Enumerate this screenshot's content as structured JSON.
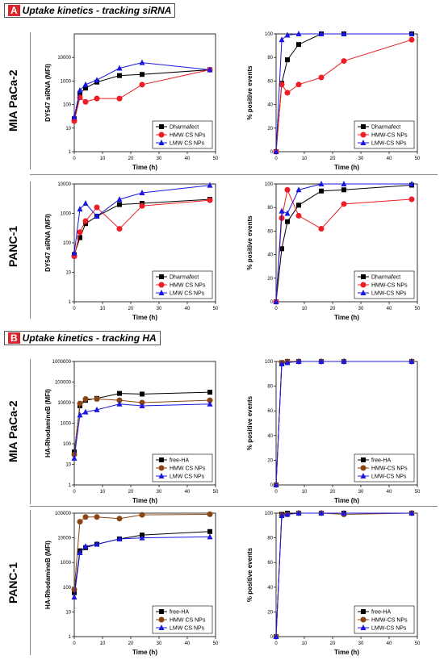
{
  "sections": [
    {
      "letter": "A",
      "title": "Uptake kinetics - tracking siRNA"
    },
    {
      "letter": "B",
      "title": "Uptake kinetics - tracking HA"
    }
  ],
  "row_labels": [
    "MIA PaCa-2",
    "PANC-1",
    "MIA PaCa-2",
    "PANC-1"
  ],
  "colors": {
    "black": "#000000",
    "red": "#ee1c24",
    "blue": "#1818e0",
    "brown": "#8b4513",
    "error_shade": "#f3c0f0"
  },
  "chart_data": [
    {
      "type": "line",
      "section": "A",
      "cell_line": "MIA PaCa-2",
      "scale": "log",
      "xlabel": "Time (h)",
      "ylabel": "DY547 siRNA (MFI)",
      "xlim": [
        0,
        50
      ],
      "ylim": [
        1,
        100000
      ],
      "x_ticks": [
        "0",
        "10",
        "20",
        "30",
        "40",
        "50"
      ],
      "y_ticks": [
        "1",
        "10",
        "100",
        "1000",
        "10000"
      ],
      "legend_position": "bottom-right",
      "series": [
        {
          "name": "Dharmafect",
          "color": "#000000",
          "marker": "square",
          "x": [
            0,
            2,
            4,
            8,
            16,
            24,
            48
          ],
          "values": [
            25,
            300,
            500,
            900,
            1700,
            1900,
            3000
          ]
        },
        {
          "name": "HMW CS NPs",
          "color": "#ee1c24",
          "marker": "circle",
          "x": [
            0,
            2,
            4,
            8,
            16,
            24,
            48
          ],
          "values": [
            20,
            200,
            130,
            180,
            180,
            700,
            3000
          ]
        },
        {
          "name": "LMW CS NPs",
          "color": "#1818e0",
          "marker": "triangle",
          "x": [
            0,
            2,
            4,
            8,
            16,
            24,
            48
          ],
          "values": [
            30,
            400,
            700,
            1100,
            3500,
            6000,
            3000
          ]
        }
      ]
    },
    {
      "type": "line",
      "section": "A",
      "cell_line": "MIA PaCa-2",
      "scale": "linear",
      "xlabel": "Time (h)",
      "ylabel": "% positive events",
      "xlim": [
        0,
        50
      ],
      "ylim": [
        0,
        100
      ],
      "x_ticks": [
        "0",
        "10",
        "20",
        "30",
        "40",
        "50"
      ],
      "y_ticks": [
        "0",
        "20",
        "40",
        "60",
        "80",
        "100"
      ],
      "legend_position": "bottom-right",
      "series": [
        {
          "name": "Dharmafect",
          "color": "#000000",
          "marker": "square",
          "x": [
            0,
            2,
            4,
            8,
            16,
            24,
            48
          ],
          "values": [
            0,
            58,
            78,
            91,
            100,
            100,
            100
          ]
        },
        {
          "name": "HMW-CS NPs",
          "color": "#ee1c24",
          "marker": "circle",
          "x": [
            0,
            2,
            4,
            8,
            16,
            24,
            48
          ],
          "values": [
            0,
            57,
            50,
            57,
            63,
            77,
            95
          ]
        },
        {
          "name": "LMW-CS NPs",
          "color": "#1818e0",
          "marker": "triangle",
          "x": [
            0,
            2,
            4,
            8,
            16,
            24,
            48
          ],
          "values": [
            0,
            95,
            99,
            100,
            100,
            100,
            100
          ]
        }
      ]
    },
    {
      "type": "line",
      "section": "A",
      "cell_line": "PANC-1",
      "scale": "log",
      "xlabel": "Time (h)",
      "ylabel": "DY547 siRNA (MFI)",
      "xlim": [
        0,
        50
      ],
      "ylim": [
        1,
        10000
      ],
      "x_ticks": [
        "0",
        "10",
        "20",
        "30",
        "40",
        "50"
      ],
      "y_ticks": [
        "1",
        "10",
        "100",
        "1000",
        "10000"
      ],
      "legend_position": "bottom-right",
      "series": [
        {
          "name": "Dharmafect",
          "color": "#000000",
          "marker": "square",
          "x": [
            0,
            2,
            4,
            8,
            16,
            24,
            48
          ],
          "values": [
            40,
            150,
            450,
            800,
            2000,
            2200,
            3000
          ]
        },
        {
          "name": "HMW CS NPs",
          "color": "#ee1c24",
          "marker": "circle",
          "x": [
            0,
            2,
            4,
            8,
            16,
            24,
            48
          ],
          "values": [
            35,
            230,
            550,
            1600,
            300,
            1800,
            2800
          ]
        },
        {
          "name": "LMW CS NPs",
          "color": "#1818e0",
          "marker": "triangle",
          "x": [
            0,
            2,
            4,
            8,
            16,
            24,
            48
          ],
          "values": [
            45,
            1400,
            2200,
            800,
            3000,
            5000,
            9000
          ]
        }
      ]
    },
    {
      "type": "line",
      "section": "A",
      "cell_line": "PANC-1",
      "scale": "linear",
      "xlabel": "Time (h)",
      "ylabel": "% positive events",
      "xlim": [
        0,
        50
      ],
      "ylim": [
        0,
        100
      ],
      "x_ticks": [
        "0",
        "10",
        "20",
        "30",
        "40",
        "50"
      ],
      "y_ticks": [
        "0",
        "20",
        "40",
        "60",
        "80",
        "100"
      ],
      "legend_position": "bottom-right",
      "series": [
        {
          "name": "Dharmafect",
          "color": "#000000",
          "marker": "square",
          "x": [
            0,
            2,
            4,
            8,
            16,
            24,
            48
          ],
          "values": [
            0,
            45,
            68,
            82,
            94,
            95,
            99
          ]
        },
        {
          "name": "HMW-CS NPs",
          "color": "#ee1c24",
          "marker": "circle",
          "x": [
            0,
            2,
            4,
            8,
            16,
            24,
            48
          ],
          "values": [
            0,
            71,
            95,
            73,
            62,
            83,
            87
          ]
        },
        {
          "name": "LMW-CS NPs",
          "color": "#1818e0",
          "marker": "triangle",
          "x": [
            0,
            2,
            4,
            8,
            16,
            24,
            48
          ],
          "values": [
            0,
            77,
            75,
            95,
            100,
            100,
            100
          ]
        }
      ]
    },
    {
      "type": "line",
      "section": "B",
      "cell_line": "MIA PaCa-2",
      "scale": "log",
      "xlabel": "Time (h)",
      "ylabel": "HA-RhodamineB (MFI)",
      "xlim": [
        0,
        50
      ],
      "ylim": [
        1,
        1000000
      ],
      "x_ticks": [
        "0",
        "10",
        "20",
        "30",
        "40",
        "50"
      ],
      "y_ticks": [
        "1",
        "10",
        "100",
        "1000",
        "10000",
        "100000",
        "1000000"
      ],
      "legend_position": "bottom-right",
      "series": [
        {
          "name": "free-HA",
          "color": "#000000",
          "marker": "square",
          "x": [
            0,
            2,
            4,
            8,
            16,
            24,
            48
          ],
          "values": [
            40,
            7000,
            13000,
            16000,
            28000,
            26000,
            32000
          ]
        },
        {
          "name": "HMW CS NPs",
          "color": "#8b4513",
          "marker": "circle",
          "x": [
            0,
            2,
            4,
            8,
            16,
            24,
            48
          ],
          "values": [
            30,
            9000,
            15000,
            15000,
            13000,
            10000,
            13000
          ]
        },
        {
          "name": "LMW CS NPs",
          "color": "#1818e0",
          "marker": "triangle",
          "x": [
            0,
            2,
            4,
            8,
            16,
            24,
            48
          ],
          "values": [
            20,
            2500,
            3500,
            4500,
            8500,
            7000,
            8500
          ]
        }
      ]
    },
    {
      "type": "line",
      "section": "B",
      "cell_line": "MIA PaCa-2",
      "scale": "linear",
      "xlabel": "Time (h)",
      "ylabel": "% positive events",
      "xlim": [
        0,
        50
      ],
      "ylim": [
        0,
        100
      ],
      "x_ticks": [
        "0",
        "10",
        "20",
        "30",
        "40",
        "50"
      ],
      "y_ticks": [
        "0",
        "20",
        "40",
        "60",
        "80",
        "100"
      ],
      "legend_position": "bottom-right",
      "series": [
        {
          "name": "free-HA",
          "color": "#000000",
          "marker": "square",
          "x": [
            0,
            2,
            4,
            8,
            16,
            24,
            48
          ],
          "values": [
            0,
            99,
            100,
            100,
            100,
            100,
            100
          ]
        },
        {
          "name": "HMW-CS NPs",
          "color": "#8b4513",
          "marker": "circle",
          "x": [
            0,
            2,
            4,
            8,
            16,
            24,
            48
          ],
          "values": [
            0,
            99,
            100,
            100,
            100,
            100,
            100
          ]
        },
        {
          "name": "LMW-CS NPs",
          "color": "#1818e0",
          "marker": "triangle",
          "x": [
            0,
            2,
            4,
            8,
            16,
            24,
            48
          ],
          "values": [
            0,
            98,
            99,
            100,
            100,
            100,
            100
          ]
        }
      ]
    },
    {
      "type": "line",
      "section": "B",
      "cell_line": "PANC-1",
      "scale": "log",
      "xlabel": "Time (h)",
      "ylabel": "HA-RhodamineB (MFI)",
      "xlim": [
        0,
        50
      ],
      "ylim": [
        1,
        100000
      ],
      "x_ticks": [
        "0",
        "10",
        "20",
        "30",
        "40",
        "50"
      ],
      "y_ticks": [
        "1",
        "10",
        "100",
        "1000",
        "10000",
        "100000"
      ],
      "legend_position": "bottom-right",
      "series": [
        {
          "name": "free-HA",
          "color": "#000000",
          "marker": "square",
          "x": [
            0,
            2,
            4,
            8,
            16,
            24,
            48
          ],
          "values": [
            60,
            3000,
            4000,
            5500,
            9000,
            13000,
            18000
          ]
        },
        {
          "name": "HMW CS NPs",
          "color": "#8b4513",
          "marker": "circle",
          "x": [
            0,
            2,
            4,
            8,
            16,
            24,
            48
          ],
          "values": [
            80,
            45000,
            70000,
            70000,
            60000,
            85000,
            90000
          ]
        },
        {
          "name": "LMW CS NPs",
          "color": "#1818e0",
          "marker": "triangle",
          "x": [
            0,
            2,
            4,
            8,
            16,
            24,
            48
          ],
          "values": [
            40,
            2500,
            4500,
            5500,
            9000,
            10000,
            11000
          ]
        }
      ]
    },
    {
      "type": "line",
      "section": "B",
      "cell_line": "PANC-1",
      "scale": "linear",
      "xlabel": "Time (h)",
      "ylabel": "% positive events",
      "xlim": [
        0,
        50
      ],
      "ylim": [
        0,
        100
      ],
      "x_ticks": [
        "0",
        "10",
        "20",
        "30",
        "40",
        "50"
      ],
      "y_ticks": [
        "0",
        "20",
        "40",
        "60",
        "80",
        "100"
      ],
      "legend_position": "bottom-right",
      "series": [
        {
          "name": "free-HA",
          "color": "#000000",
          "marker": "square",
          "x": [
            0,
            2,
            4,
            8,
            16,
            24,
            48
          ],
          "values": [
            0,
            99,
            100,
            100,
            100,
            100,
            100
          ]
        },
        {
          "name": "HMW-CS NPs",
          "color": "#8b4513",
          "marker": "circle",
          "x": [
            0,
            2,
            4,
            8,
            16,
            24,
            48
          ],
          "values": [
            0,
            98,
            99,
            100,
            100,
            99,
            100
          ]
        },
        {
          "name": "LMW-CS NPs",
          "color": "#1818e0",
          "marker": "triangle",
          "x": [
            0,
            2,
            4,
            8,
            16,
            24,
            48
          ],
          "values": [
            0,
            98,
            99,
            100,
            100,
            100,
            100
          ]
        }
      ]
    }
  ]
}
